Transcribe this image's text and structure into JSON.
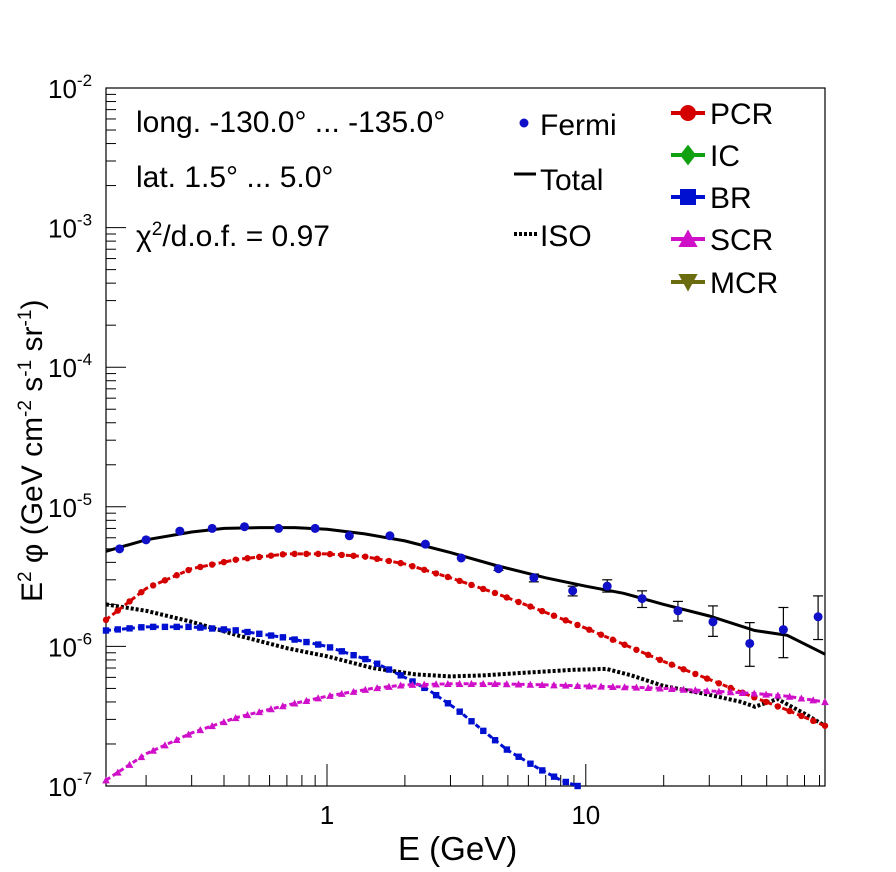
{
  "chart_data": {
    "type": "line",
    "x_scale": "log",
    "y_scale": "log",
    "xlim": [
      0.14,
      84
    ],
    "ylim": [
      1e-07,
      0.01
    ],
    "xlabel": "E (GeV)",
    "ylabel_parts": [
      "E",
      "2",
      " φ (GeV cm",
      "-2",
      " s",
      "-1",
      " sr",
      "-1",
      ")"
    ],
    "x_ticks": [
      {
        "value": 1,
        "label": "1"
      },
      {
        "value": 10,
        "label": "10"
      }
    ],
    "y_ticks": [
      {
        "value": 1e-07,
        "base": "10",
        "exp": "-7"
      },
      {
        "value": 1e-06,
        "base": "10",
        "exp": "-6"
      },
      {
        "value": 1e-05,
        "base": "10",
        "exp": "-5"
      },
      {
        "value": 0.0001,
        "base": "10",
        "exp": "-4"
      },
      {
        "value": 0.001,
        "base": "10",
        "exp": "-3"
      },
      {
        "value": 0.01,
        "base": "10",
        "exp": "-2"
      }
    ],
    "annotations": {
      "longitude": "long. -130.0° ... -135.0°",
      "latitude": "lat. 1.5° ... 5.0°",
      "chi2_prefix": "χ",
      "chi2_exp": "2",
      "chi2_suffix": "/d.o.f. = 0.97"
    },
    "legend_left": [
      {
        "name": "Fermi",
        "style": "point",
        "color": "#1010c8"
      },
      {
        "name": "Total",
        "style": "solid",
        "color": "#000000"
      },
      {
        "name": "ISO",
        "style": "dotted",
        "color": "#000000"
      }
    ],
    "legend_right": [
      {
        "name": "PCR",
        "marker": "circle",
        "color": "#d40000"
      },
      {
        "name": "IC",
        "marker": "diamond",
        "color": "#10a010"
      },
      {
        "name": "BR",
        "marker": "square",
        "color": "#0010d0"
      },
      {
        "name": "SCR",
        "marker": "triangle",
        "color": "#d010c8"
      },
      {
        "name": "MCR",
        "marker": "triangle-down",
        "color": "#6b6b10"
      }
    ],
    "fermi": {
      "color": "#1010c8",
      "x": [
        0.158,
        0.2,
        0.27,
        0.36,
        0.48,
        0.65,
        0.9,
        1.22,
        1.75,
        2.4,
        3.3,
        4.6,
        6.3,
        8.9,
        12.1,
        16.5,
        22.7,
        31,
        43,
        58,
        79
      ],
      "y": [
        5e-06,
        5.8e-06,
        6.7e-06,
        7e-06,
        7.2e-06,
        7e-06,
        7e-06,
        6.2e-06,
        6.2e-06,
        5.4e-06,
        4.3e-06,
        3.6e-06,
        3.1e-06,
        2.5e-06,
        2.7e-06,
        2.2e-06,
        1.8e-06,
        1.5e-06,
        1.05e-06,
        1.32e-06,
        1.63e-06
      ],
      "err_lo": [
        5e-06,
        5.8e-06,
        6.7e-06,
        7e-06,
        7.2e-06,
        7e-06,
        7e-06,
        6.2e-06,
        6.2e-06,
        5.4e-06,
        4.3e-06,
        3.5e-06,
        2.9e-06,
        2.3e-06,
        2.45e-06,
        1.9e-06,
        1.52e-06,
        1.18e-06,
        7.2e-07,
        8.3e-07,
        1.12e-06
      ],
      "err_hi": [
        5e-06,
        5.8e-06,
        6.7e-06,
        7e-06,
        7.2e-06,
        7e-06,
        7e-06,
        6.2e-06,
        6.2e-06,
        5.4e-06,
        4.3e-06,
        3.75e-06,
        3.3e-06,
        2.7e-06,
        3e-06,
        2.5e-06,
        2.1e-06,
        1.95e-06,
        1.48e-06,
        1.9e-06,
        2.3e-06
      ]
    },
    "series": [
      {
        "name": "Total",
        "style": "solid",
        "color": "#000000",
        "x": [
          0.14,
          0.2,
          0.3,
          0.4,
          0.55,
          0.75,
          1.0,
          1.4,
          2.0,
          3.0,
          4.5,
          7.0,
          10,
          14,
          20,
          30,
          45,
          60,
          84
        ],
        "y": [
          4.8e-06,
          5.8e-06,
          6.6e-06,
          7e-06,
          7.1e-06,
          7.1e-06,
          6.9e-06,
          6.4e-06,
          5.7e-06,
          4.7e-06,
          3.8e-06,
          3.1e-06,
          2.7e-06,
          2.4e-06,
          2e-06,
          1.65e-06,
          1.3e-06,
          1.2e-06,
          8.8e-07
        ]
      },
      {
        "name": "ISO",
        "style": "dotted",
        "color": "#000000",
        "x": [
          0.14,
          0.2,
          0.3,
          0.45,
          0.7,
          1.0,
          1.5,
          2.2,
          3.0,
          4.0,
          6.0,
          9.0,
          12,
          15,
          20,
          30,
          40,
          45,
          55,
          70,
          84
        ],
        "y": [
          2e-06,
          1.8e-06,
          1.5e-06,
          1.2e-06,
          9.7e-07,
          8.5e-07,
          7e-07,
          6.3e-07,
          6.1e-07,
          6.2e-07,
          6.5e-07,
          6.8e-07,
          6.9e-07,
          6.2e-07,
          5.2e-07,
          4.5e-07,
          4e-07,
          3.7e-07,
          4.2e-07,
          3.3e-07,
          2.7e-07
        ]
      },
      {
        "name": "PCR",
        "marker": "circle",
        "color": "#d40000",
        "x": [
          0.14,
          0.2,
          0.3,
          0.45,
          0.7,
          1.0,
          1.4,
          2.0,
          3.0,
          4.5,
          7.0,
          10,
          15,
          20,
          30,
          45,
          60,
          84
        ],
        "y": [
          1.55e-06,
          2.6e-06,
          3.6e-06,
          4.2e-06,
          4.6e-06,
          4.6e-06,
          4.4e-06,
          3.9e-06,
          3.1e-06,
          2.4e-06,
          1.75e-06,
          1.35e-06,
          9.8e-07,
          7.8e-07,
          5.8e-07,
          4.3e-07,
          3.5e-07,
          2.7e-07
        ]
      },
      {
        "name": "BR",
        "marker": "square",
        "color": "#0010d0",
        "x": [
          0.14,
          0.2,
          0.3,
          0.45,
          0.7,
          1.0,
          1.5,
          2.0,
          2.5,
          3.2,
          4.0,
          5.0,
          6.5,
          8.0,
          9.3
        ],
        "y": [
          1.3e-06,
          1.38e-06,
          1.38e-06,
          1.3e-06,
          1.15e-06,
          1e-06,
          7.8e-07,
          6e-07,
          4.8e-07,
          3.5e-07,
          2.5e-07,
          1.8e-07,
          1.35e-07,
          1.1e-07,
          1e-07
        ]
      },
      {
        "name": "SCR",
        "marker": "triangle",
        "color": "#d010c8",
        "x": [
          0.14,
          0.2,
          0.3,
          0.45,
          0.7,
          1.0,
          1.5,
          2.0,
          3.0,
          4.5,
          7.0,
          10,
          15,
          20,
          30,
          45,
          60,
          84
        ],
        "y": [
          1.1e-07,
          1.7e-07,
          2.4e-07,
          3.1e-07,
          3.8e-07,
          4.4e-07,
          5e-07,
          5.3e-07,
          5.4e-07,
          5.4e-07,
          5.3e-07,
          5.2e-07,
          5.1e-07,
          5e-07,
          4.8e-07,
          4.6e-07,
          4.4e-07,
          4e-07
        ]
      }
    ]
  }
}
